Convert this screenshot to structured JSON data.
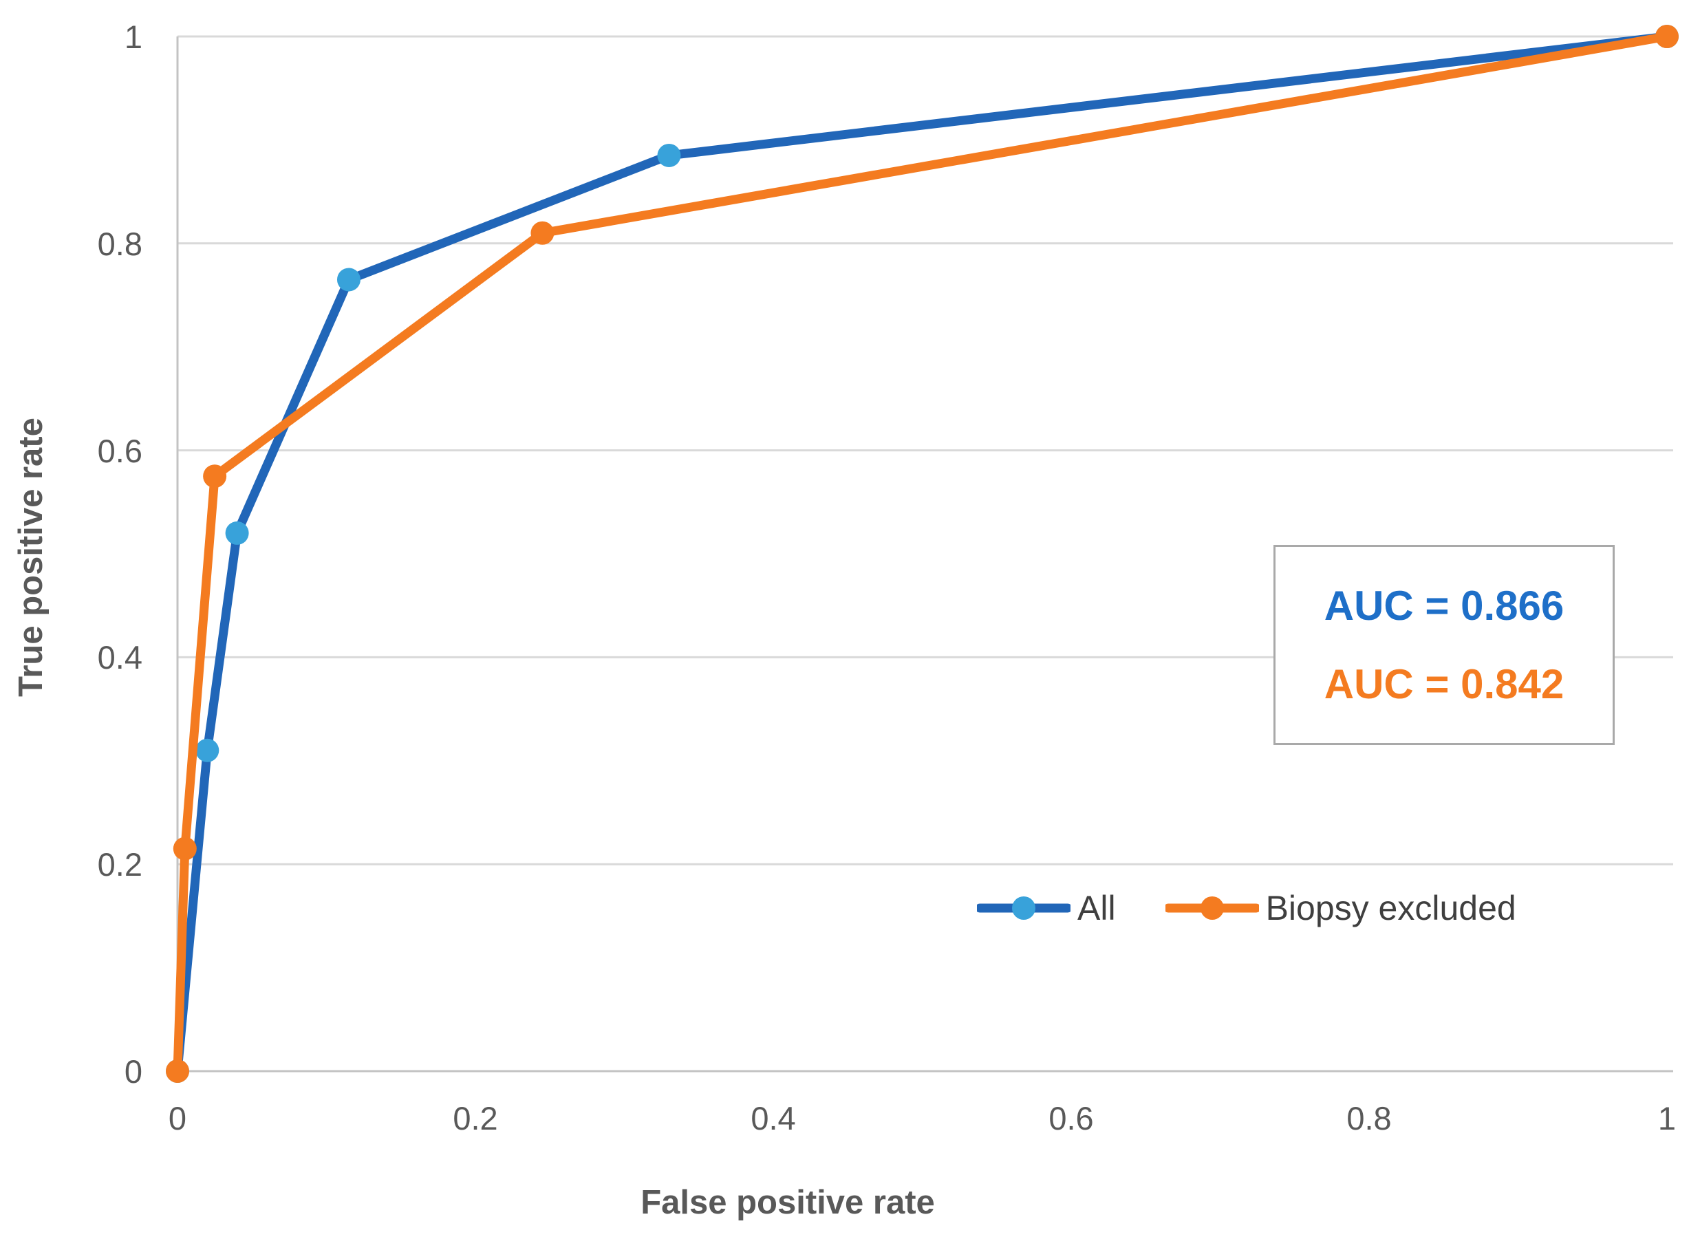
{
  "chart_data": {
    "type": "line",
    "title": "",
    "xlabel": "False positive rate",
    "ylabel": "True positive rate",
    "xlim": [
      0,
      1
    ],
    "ylim": [
      0,
      1
    ],
    "xticks": [
      0,
      0.2,
      0.4,
      0.6,
      0.8,
      1
    ],
    "yticks": [
      0,
      0.2,
      0.4,
      0.6,
      0.8,
      1
    ],
    "xtick_labels": [
      "0",
      "0.2",
      "0.4",
      "0.6",
      "0.8",
      "1"
    ],
    "ytick_labels": [
      "0",
      "0.2",
      "0.4",
      "0.6",
      "0.8",
      "1"
    ],
    "grid": "horizontal-only",
    "legend_position": "inside-bottom-right",
    "series": [
      {
        "name": "All",
        "line_color": "#2166b8",
        "marker_color": "#38a2da",
        "auc": 0.866,
        "points": [
          [
            0,
            0
          ],
          [
            0.02,
            0.31
          ],
          [
            0.04,
            0.52
          ],
          [
            0.115,
            0.765
          ],
          [
            0.33,
            0.885
          ],
          [
            1,
            1
          ]
        ]
      },
      {
        "name": "Biopsy excluded",
        "line_color": "#f47b20",
        "marker_color": "#f47b20",
        "auc": 0.842,
        "points": [
          [
            0,
            0
          ],
          [
            0.005,
            0.215
          ],
          [
            0.025,
            0.575
          ],
          [
            0.245,
            0.81
          ],
          [
            1,
            1
          ]
        ]
      }
    ]
  },
  "axis_titles": {
    "x": "False positive rate",
    "y": "True positive rate"
  },
  "legend": {
    "items": [
      {
        "label": "All"
      },
      {
        "label": "Biopsy excluded"
      }
    ]
  },
  "annotations": {
    "auc_all": "AUC = 0.866",
    "auc_biopsy_excluded": "AUC = 0.842"
  },
  "colors": {
    "blue_line": "#2166b8",
    "blue_marker": "#38a2da",
    "orange": "#f47b20",
    "auc_text_blue": "#1e6fc8",
    "auc_text_orange": "#f47b20",
    "gridline": "#d9d9d9",
    "axis_line": "#c3c3c3",
    "tick_text": "#595959",
    "axis_title_text": "#595959",
    "legend_text": "#3f3f3f",
    "annotation_border": "#a9a9a9",
    "background": "#ffffff"
  }
}
